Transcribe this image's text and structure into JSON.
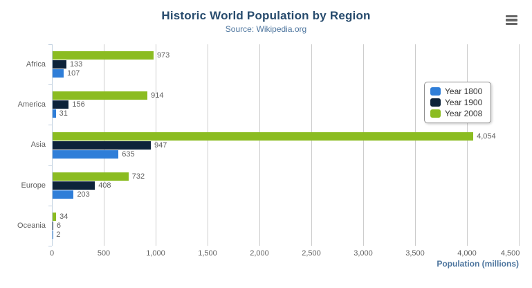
{
  "chart_data": {
    "type": "bar",
    "orientation": "horizontal",
    "title": "Historic World Population by Region",
    "subtitle": "Source: Wikipedia.org",
    "categories": [
      "Africa",
      "America",
      "Asia",
      "Europe",
      "Oceania"
    ],
    "series": [
      {
        "name": "Year 1800",
        "color": "#2f7ed8",
        "values": [
          107,
          31,
          635,
          203,
          2
        ]
      },
      {
        "name": "Year 1900",
        "color": "#0d233a",
        "values": [
          133,
          156,
          947,
          408,
          6
        ]
      },
      {
        "name": "Year 2008",
        "color": "#8bbc21",
        "values": [
          973,
          914,
          4054,
          732,
          34
        ]
      }
    ],
    "bar_order_top_to_bottom": [
      "Year 2008",
      "Year 1900",
      "Year 1800"
    ],
    "xlabel": "Population (millions)",
    "xlim": [
      0,
      4500
    ],
    "x_ticks": [
      {
        "v": 0,
        "label": "0"
      },
      {
        "v": 500,
        "label": "500"
      },
      {
        "v": 1000,
        "label": "1,000"
      },
      {
        "v": 1500,
        "label": "1,500"
      },
      {
        "v": 2000,
        "label": "2,000"
      },
      {
        "v": 2500,
        "label": "2,500"
      },
      {
        "v": 3000,
        "label": "3,000"
      },
      {
        "v": 3500,
        "label": "3,500"
      },
      {
        "v": 4000,
        "label": "4,000"
      },
      {
        "v": 4500,
        "label": "4,500"
      }
    ],
    "grid": true,
    "legend_position": "inside-right",
    "data_labels": true
  },
  "icons": {
    "export_menu": "hamburger-menu-icon"
  },
  "palette": {
    "title": "#274b6d",
    "subtitle": "#4d759e",
    "axis_title": "#4d759e",
    "tick_label": "#606060",
    "category_label": "#606060",
    "data_label": "#606060",
    "grid_line": "#cccccc",
    "axis_line": "#c0d0e0",
    "legend_border": "#909090",
    "legend_text": "#333333",
    "menu_icon": "#666666",
    "background": "#ffffff"
  }
}
